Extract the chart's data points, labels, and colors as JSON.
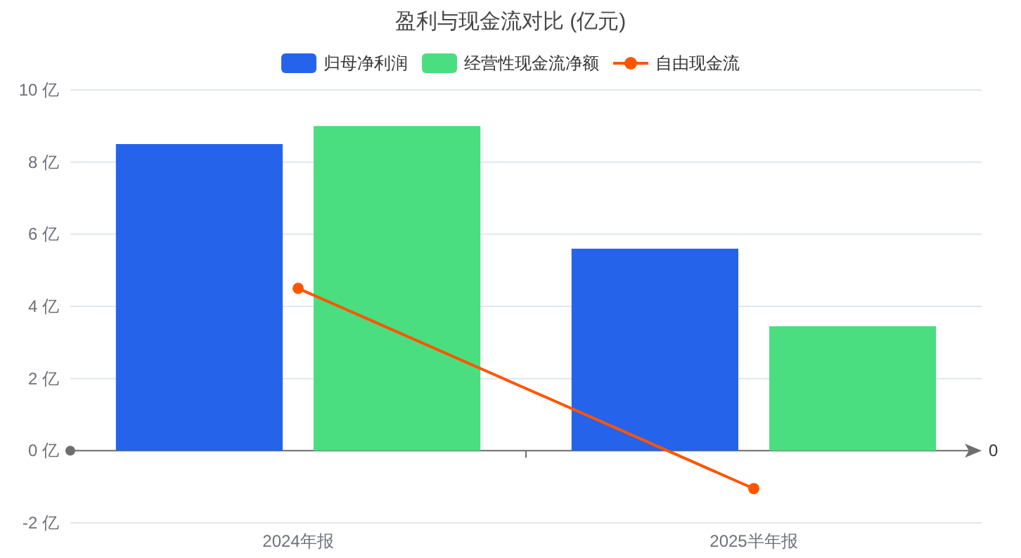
{
  "chart_data": {
    "type": "bar",
    "title": "盈利与现金流对比 (亿元)",
    "categories": [
      "2024年报",
      "2025半年报"
    ],
    "series": [
      {
        "name": "归母净利润",
        "color": "#2563eb",
        "values": [
          8.5,
          5.6
        ]
      },
      {
        "name": "经营性现金流净额",
        "color": "#4ade80",
        "values": [
          9.0,
          3.45
        ]
      },
      {
        "name": "自由现金流",
        "type": "line",
        "color": "#ff5500",
        "values": [
          4.5,
          -1.05
        ],
        "marker": "circle"
      }
    ],
    "ylim": [
      -2,
      10
    ],
    "yticks": [
      {
        "value": -2,
        "label": "-2 亿"
      },
      {
        "value": 0,
        "label": "0 亿"
      },
      {
        "value": 2,
        "label": "2 亿"
      },
      {
        "value": 4,
        "label": "4 亿"
      },
      {
        "value": 6,
        "label": "6 亿"
      },
      {
        "value": 8,
        "label": "8 亿"
      },
      {
        "value": 10,
        "label": "10 亿"
      }
    ],
    "grid": "y",
    "legend": "top",
    "annotations": [
      "0"
    ]
  }
}
